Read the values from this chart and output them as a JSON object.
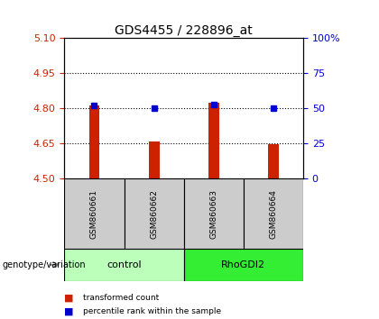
{
  "title": "GDS4455 / 228896_at",
  "samples": [
    "GSM860661",
    "GSM860662",
    "GSM860663",
    "GSM860664"
  ],
  "bar_values": [
    4.812,
    4.66,
    4.824,
    4.648
  ],
  "percentile_values": [
    4.812,
    4.8,
    4.815,
    4.8
  ],
  "bar_baseline": 4.5,
  "ylim_left": [
    4.5,
    5.1
  ],
  "ylim_right": [
    0,
    100
  ],
  "yticks_left": [
    4.5,
    4.65,
    4.8,
    4.95,
    5.1
  ],
  "yticks_right": [
    0,
    25,
    50,
    75,
    100
  ],
  "ytick_labels_right": [
    "0",
    "25",
    "50",
    "75",
    "100%"
  ],
  "dotted_lines": [
    4.65,
    4.8,
    4.95
  ],
  "bar_color": "#cc2200",
  "percentile_color": "#0000cc",
  "groups": [
    {
      "label": "control",
      "samples": [
        0,
        1
      ],
      "color": "#bbffbb"
    },
    {
      "label": "RhoGDI2",
      "samples": [
        2,
        3
      ],
      "color": "#33ee33"
    }
  ],
  "group_label_prefix": "genotype/variation",
  "sample_box_color": "#cccccc",
  "legend_items": [
    {
      "label": "transformed count",
      "color": "#cc2200"
    },
    {
      "label": "percentile rank within the sample",
      "color": "#0000cc"
    }
  ],
  "x_positions": [
    0,
    1,
    2,
    3
  ],
  "background_color": "#ffffff"
}
